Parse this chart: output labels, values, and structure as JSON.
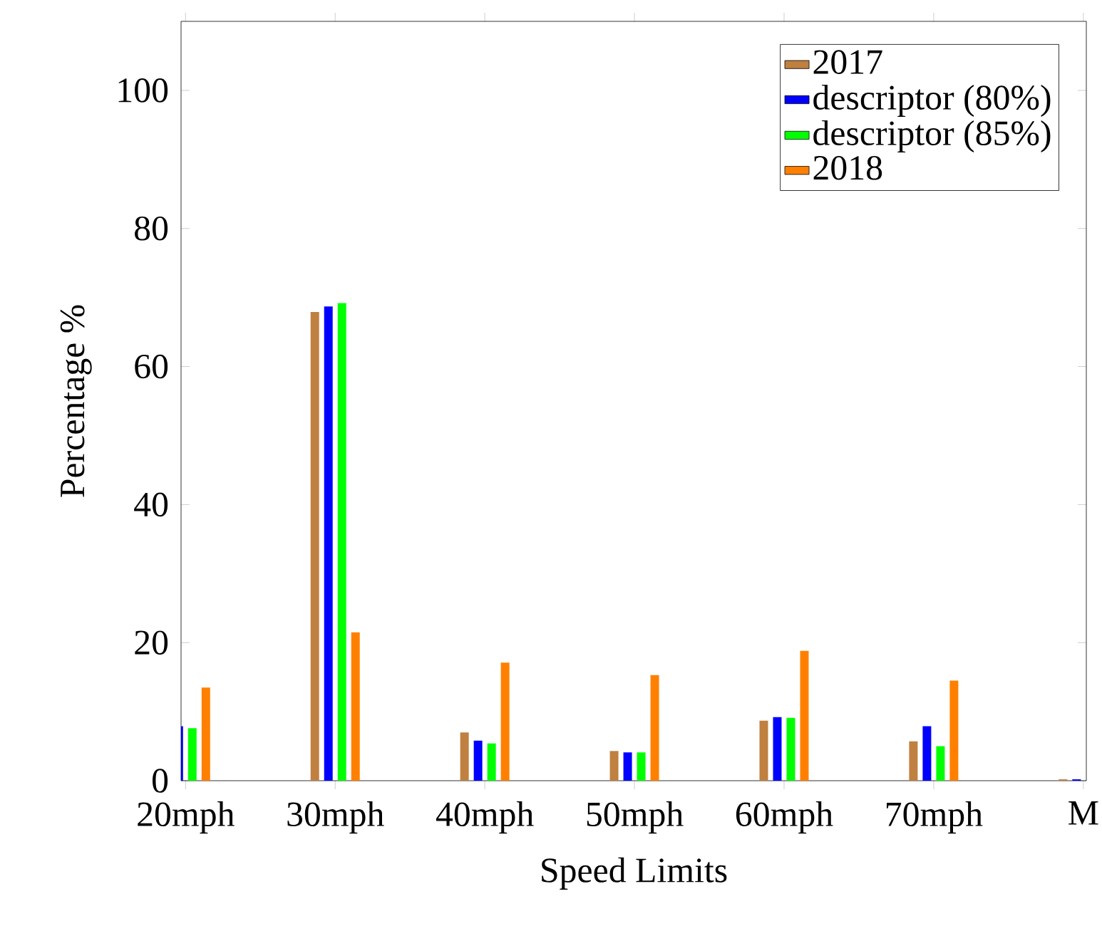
{
  "chart_data": {
    "type": "bar",
    "xlabel": "Speed Limits",
    "ylabel": "Percentage %",
    "categories": [
      "20mph",
      "30mph",
      "40mph",
      "50mph",
      "60mph",
      "70mph",
      "M"
    ],
    "series": [
      {
        "name": "2017",
        "color": "#bf8040",
        "values": [
          null,
          67.9,
          7.0,
          4.3,
          8.7,
          5.7,
          0.2
        ]
      },
      {
        "name": "descriptor (80%)",
        "color": "#0000ff",
        "values": [
          7.9,
          68.7,
          5.8,
          4.1,
          9.2,
          7.9,
          0.2
        ]
      },
      {
        "name": "descriptor (85%)",
        "color": "#00ff00",
        "values": [
          7.6,
          69.2,
          5.4,
          4.1,
          9.1,
          5.0,
          null
        ]
      },
      {
        "name": "2018",
        "color": "#ff8000",
        "values": [
          13.5,
          21.5,
          17.1,
          15.3,
          18.8,
          14.5,
          null
        ]
      }
    ],
    "ylim": [
      0,
      110
    ],
    "yticks": [
      0,
      20,
      40,
      60,
      80,
      100
    ],
    "legend": "top right"
  }
}
